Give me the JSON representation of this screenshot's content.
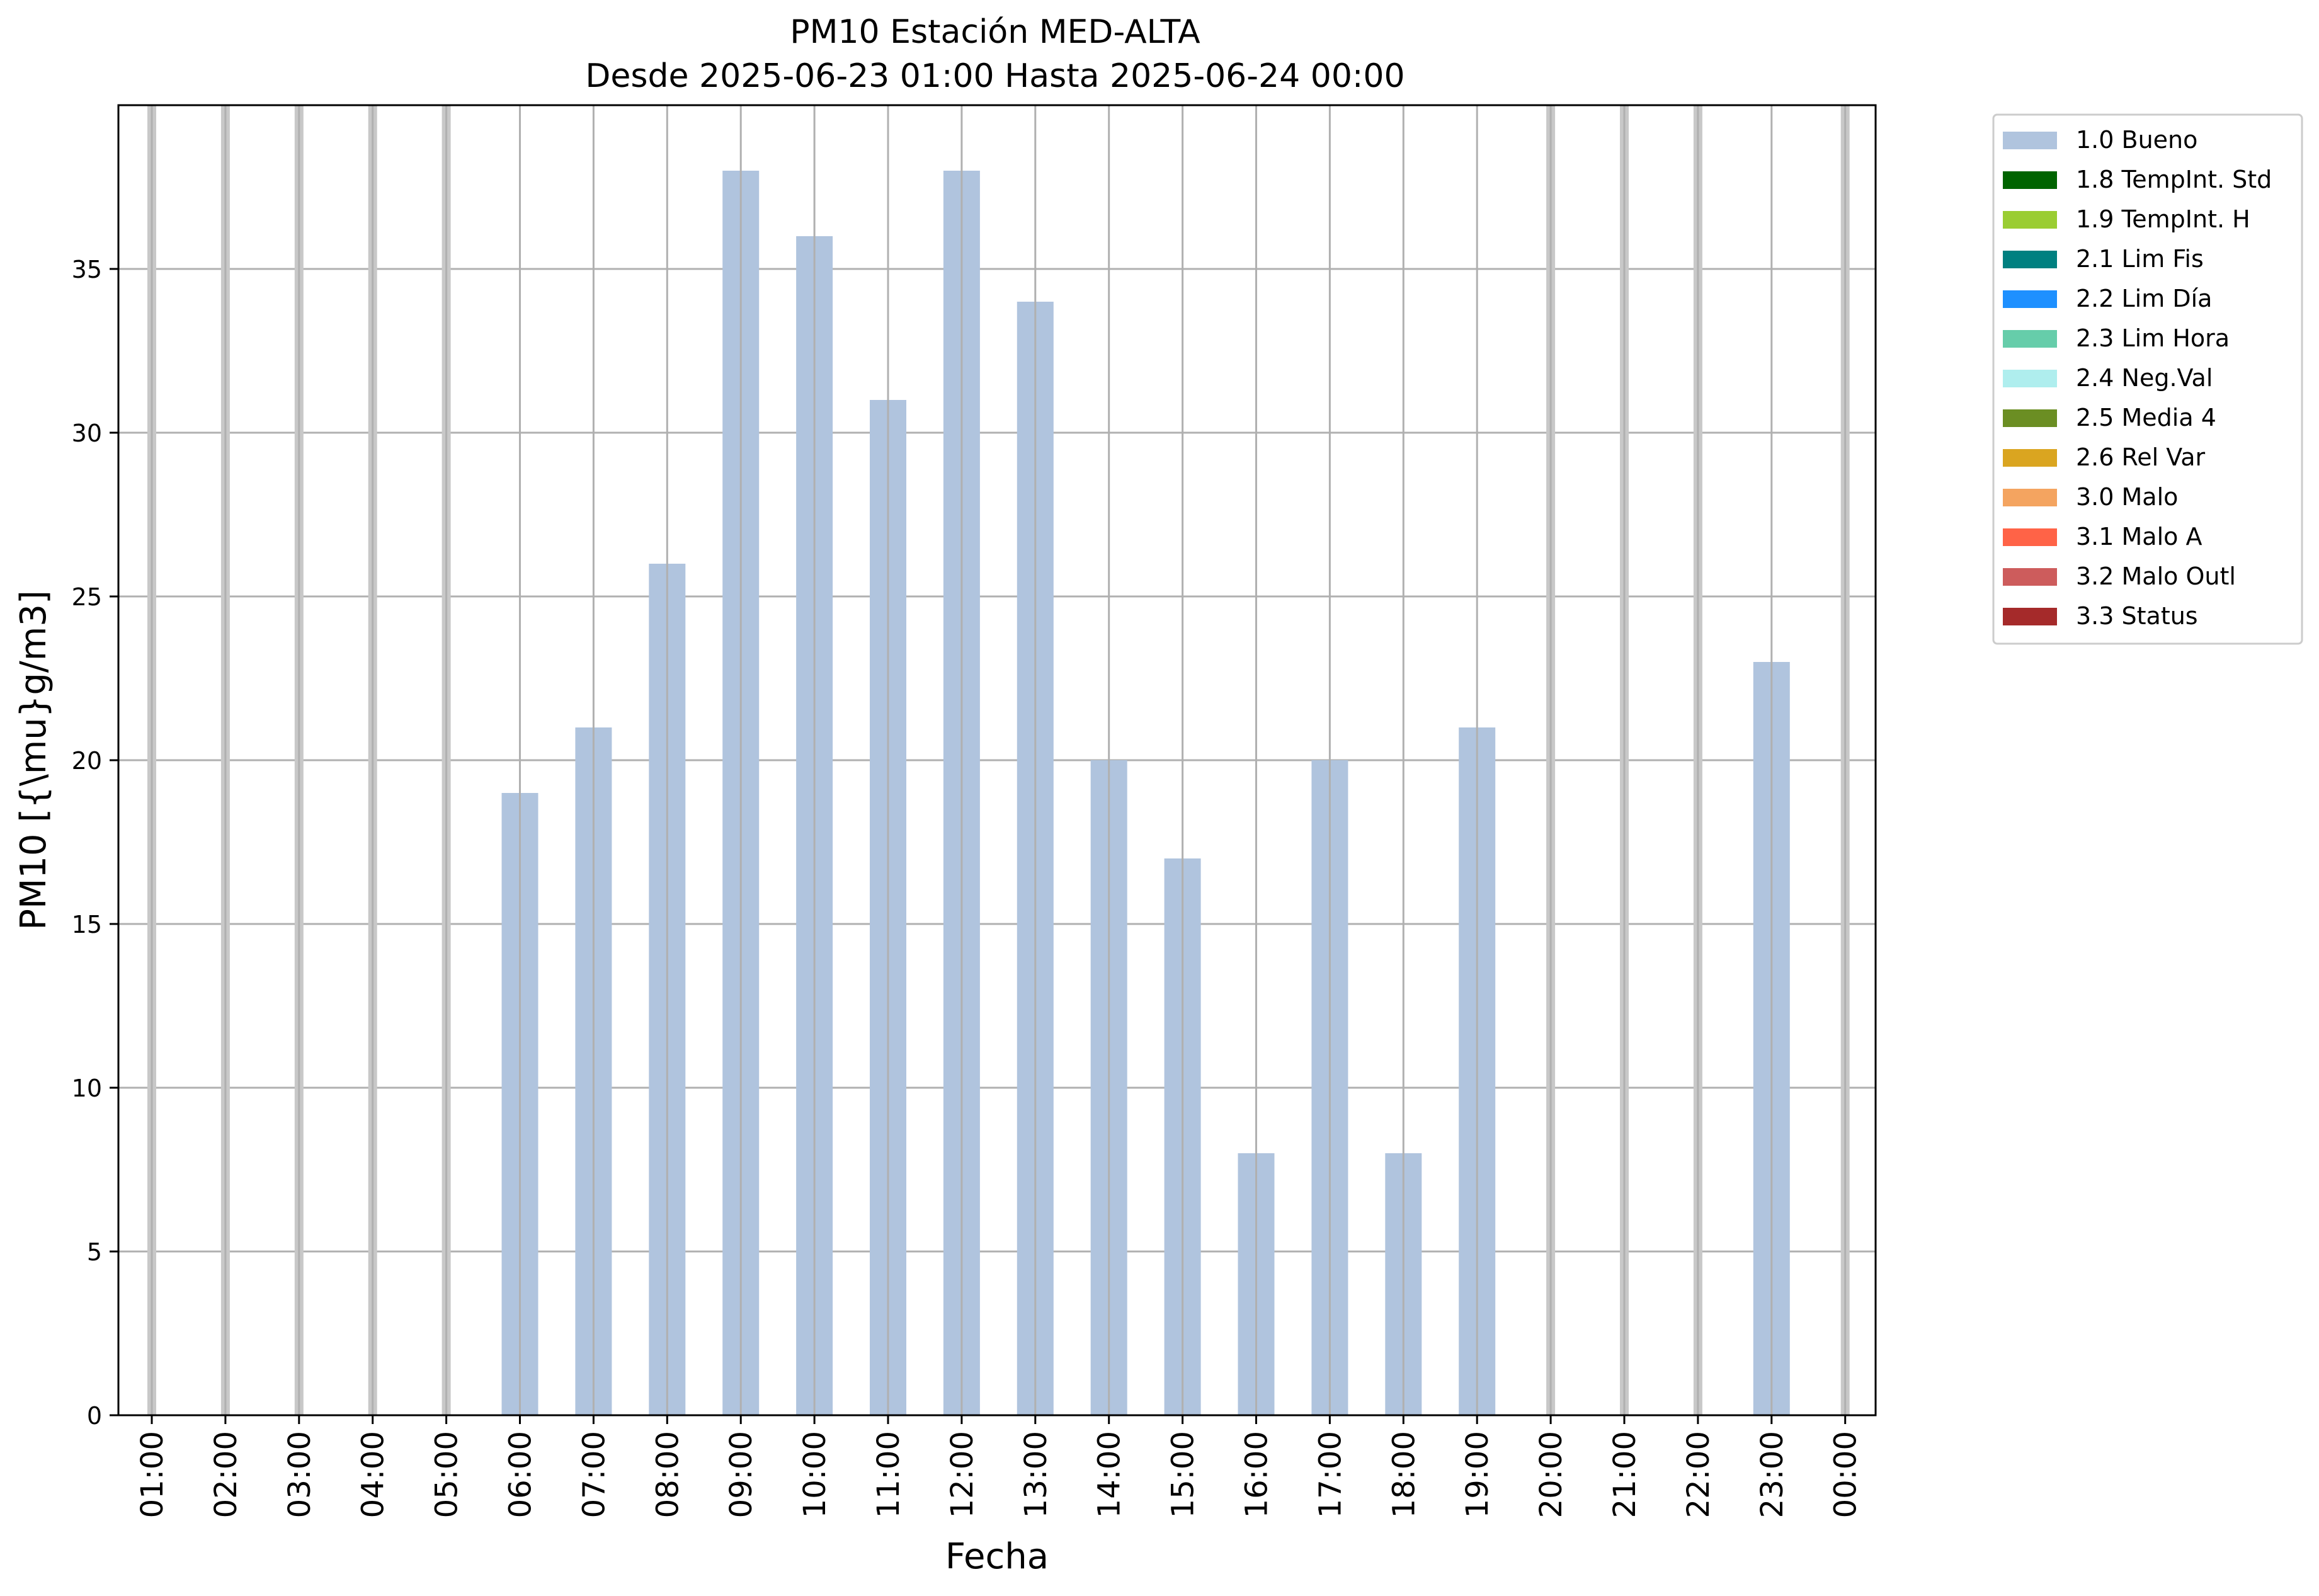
{
  "chart_data": {
    "type": "bar",
    "title": "PM10 Estación MED-ALTA",
    "subtitle": "Desde 2025-06-23 01:00 Hasta 2025-06-24 00:00",
    "xlabel": "Fecha",
    "ylabel": "PM10 [{\\mu}g/m3]",
    "ylim": [
      0,
      40
    ],
    "yticks": [
      0,
      5,
      10,
      15,
      20,
      25,
      30,
      35
    ],
    "grid": true,
    "legend_position": "outside-right",
    "categories": [
      "01:00",
      "02:00",
      "03:00",
      "04:00",
      "05:00",
      "06:00",
      "07:00",
      "08:00",
      "09:00",
      "10:00",
      "11:00",
      "12:00",
      "13:00",
      "14:00",
      "15:00",
      "16:00",
      "17:00",
      "18:00",
      "19:00",
      "20:00",
      "21:00",
      "22:00",
      "23:00",
      "00:00"
    ],
    "series": [
      {
        "name": "1.0 Bueno",
        "color": "#b0c4de",
        "values": [
          null,
          null,
          null,
          null,
          null,
          19,
          21,
          26,
          38,
          36,
          31,
          38,
          34,
          20,
          17,
          8,
          20,
          8,
          21,
          null,
          null,
          null,
          23,
          null
        ]
      }
    ],
    "legend": [
      {
        "label": "1.0 Bueno",
        "color": "#b0c4de"
      },
      {
        "label": "1.8 TempInt. Std",
        "color": "#006400"
      },
      {
        "label": "1.9 TempInt. H",
        "color": "#9acd32"
      },
      {
        "label": "2.1 Lim Fis",
        "color": "#008080"
      },
      {
        "label": "2.2 Lim Día",
        "color": "#1e90ff"
      },
      {
        "label": "2.3 Lim Hora",
        "color": "#66cdaa"
      },
      {
        "label": "2.4 Neg.Val",
        "color": "#afeeee"
      },
      {
        "label": "2.5 Media 4",
        "color": "#6b8e23"
      },
      {
        "label": "2.6 Rel Var",
        "color": "#daa520"
      },
      {
        "label": "3.0 Malo",
        "color": "#f4a460"
      },
      {
        "label": "3.1 Malo A",
        "color": "#ff6347"
      },
      {
        "label": "3.2 Malo Outl",
        "color": "#cd5c5c"
      },
      {
        "label": "3.3 Status",
        "color": "#a52a2a"
      }
    ],
    "missing_marker_color": "#c8c8c8"
  }
}
